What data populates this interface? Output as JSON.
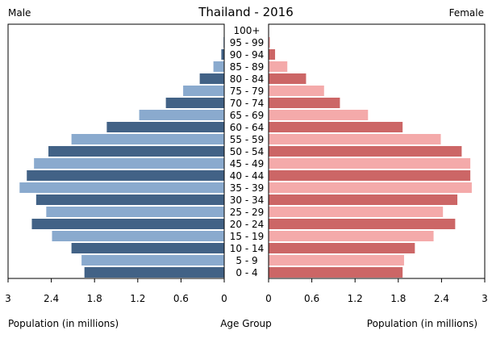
{
  "chart_data": {
    "type": "bar",
    "title": "Thailand - 2016",
    "left_label": "Male",
    "right_label": "Female",
    "xlabel_left": "Population (in millions)",
    "xlabel_center": "Age Group",
    "xlabel_right": "Population (in millions)",
    "xlim": [
      0,
      3
    ],
    "x_ticks_left": [
      "3",
      "2.4",
      "1.8",
      "1.2",
      "0.6",
      "0"
    ],
    "x_ticks_right": [
      "0",
      "0.6",
      "1.2",
      "1.8",
      "2.4",
      "3"
    ],
    "tick_values": [
      0,
      0.6,
      1.2,
      1.8,
      2.4,
      3
    ],
    "categories": [
      "0 - 4",
      "5 - 9",
      "10 - 14",
      "15 - 19",
      "20 - 24",
      "25 - 29",
      "30 - 34",
      "35 - 39",
      "40 - 44",
      "45 - 49",
      "50 - 54",
      "55 - 59",
      "60 - 64",
      "65 - 69",
      "70 - 74",
      "75 - 79",
      "80 - 84",
      "85 - 89",
      "90 - 94",
      "95 - 99",
      "100+"
    ],
    "series": [
      {
        "name": "Male",
        "values": [
          1.94,
          1.98,
          2.12,
          2.39,
          2.67,
          2.47,
          2.61,
          2.84,
          2.74,
          2.64,
          2.44,
          2.12,
          1.63,
          1.18,
          0.81,
          0.57,
          0.34,
          0.15,
          0.04,
          0.01,
          0.003
        ]
      },
      {
        "name": "Female",
        "values": [
          1.86,
          1.88,
          2.03,
          2.29,
          2.59,
          2.42,
          2.62,
          2.82,
          2.8,
          2.8,
          2.68,
          2.39,
          1.86,
          1.38,
          0.99,
          0.77,
          0.52,
          0.26,
          0.09,
          0.02,
          0.006
        ]
      }
    ],
    "colors": {
      "male_dark": "#426286",
      "male_light": "#8aaace",
      "female_dark": "#cc6666",
      "female_light": "#f4aaaa"
    }
  }
}
